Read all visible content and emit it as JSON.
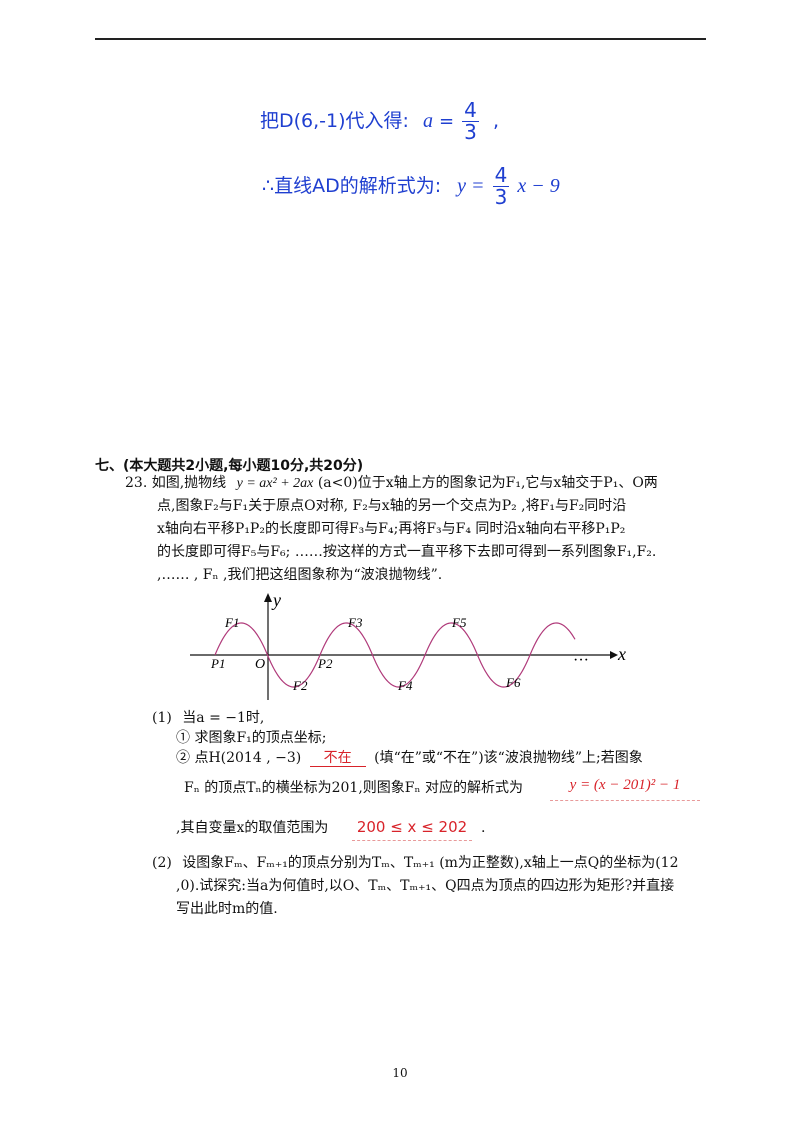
{
  "top_solution": {
    "line1_prefix": "把D(6,-1)代入得:",
    "line1_var": "a",
    "line1_num": "4",
    "line1_den": "3",
    "line1_suffix": ",",
    "line2_prefix": "∴直线AD的解析式为:",
    "line2_lhs": "y =",
    "line2_num": "4",
    "line2_den": "3",
    "line2_rest": "x − 9"
  },
  "section": {
    "heading": "七、(本大题共2小题,每小题10分,共20分)"
  },
  "problem23": {
    "number": "23.",
    "text_1": "如图,抛物线",
    "eq_main": "y = ax² + 2ax",
    "cond": "(a<0)",
    "text_2": "位于x轴上方的图象记为F₁,它与x轴交于P₁、O两",
    "line_2": "点,图象F₂与F₁关于原点O对称, F₂与x轴的另一个交点为P₂ ,将F₁与F₂同时沿",
    "line_3": "x轴向右平移P₁P₂的长度即可得F₃与F₄;再将F₃与F₄ 同时沿x轴向右平移P₁P₂",
    "line_4": "的长度即可得F₅与F₆; ……按这样的方式一直平移下去即可得到一系列图象F₁,F₂.",
    "line_5": ",…… , Fₙ ,我们把这组图象称为“波浪抛物线”."
  },
  "figure": {
    "y_label": "y",
    "x_label": "x",
    "origin_label": "O",
    "ellipsis": "···",
    "labels": {
      "F1": "F1",
      "F2": "F2",
      "F3": "F3",
      "F4": "F4",
      "F5": "F5",
      "F6": "F6",
      "P1": "P1",
      "P2": "P2"
    },
    "curve_color": "#b03a7a"
  },
  "part1": {
    "label": "(1)",
    "intro": "当a = −1时,",
    "q1": "① 求图象F₁的顶点坐标;",
    "q2_prefix": "② 点H(2014 , −3)",
    "q2_answer": "不在",
    "q2_mid": "(填“在”或“不在”)该“波浪抛物线”上;若图象",
    "q3": "Fₙ 的顶点Tₙ的横坐标为201,则图象Fₙ 对应的解析式为",
    "q3_answer": "y = (x − 201)² − 1",
    "q4_prefix": ",其自变量x的取值范围为",
    "q4_answer": "200 ≤ x ≤ 202",
    "q4_suffix": "."
  },
  "part2": {
    "label": "(2)",
    "line_1": "设图象Fₘ、Fₘ₊₁的顶点分别为Tₘ、Tₘ₊₁ (m为正整数),x轴上一点Q的坐标为(12",
    "line_2": ",0).试探究:当a为何值时,以O、Tₘ、Tₘ₊₁、Q四点为顶点的四边形为矩形?并直接",
    "line_3": "写出此时m的值."
  },
  "colors": {
    "solution_blue": "#1f3fd0",
    "answer_red": "#d8232a"
  },
  "page_number": "10"
}
